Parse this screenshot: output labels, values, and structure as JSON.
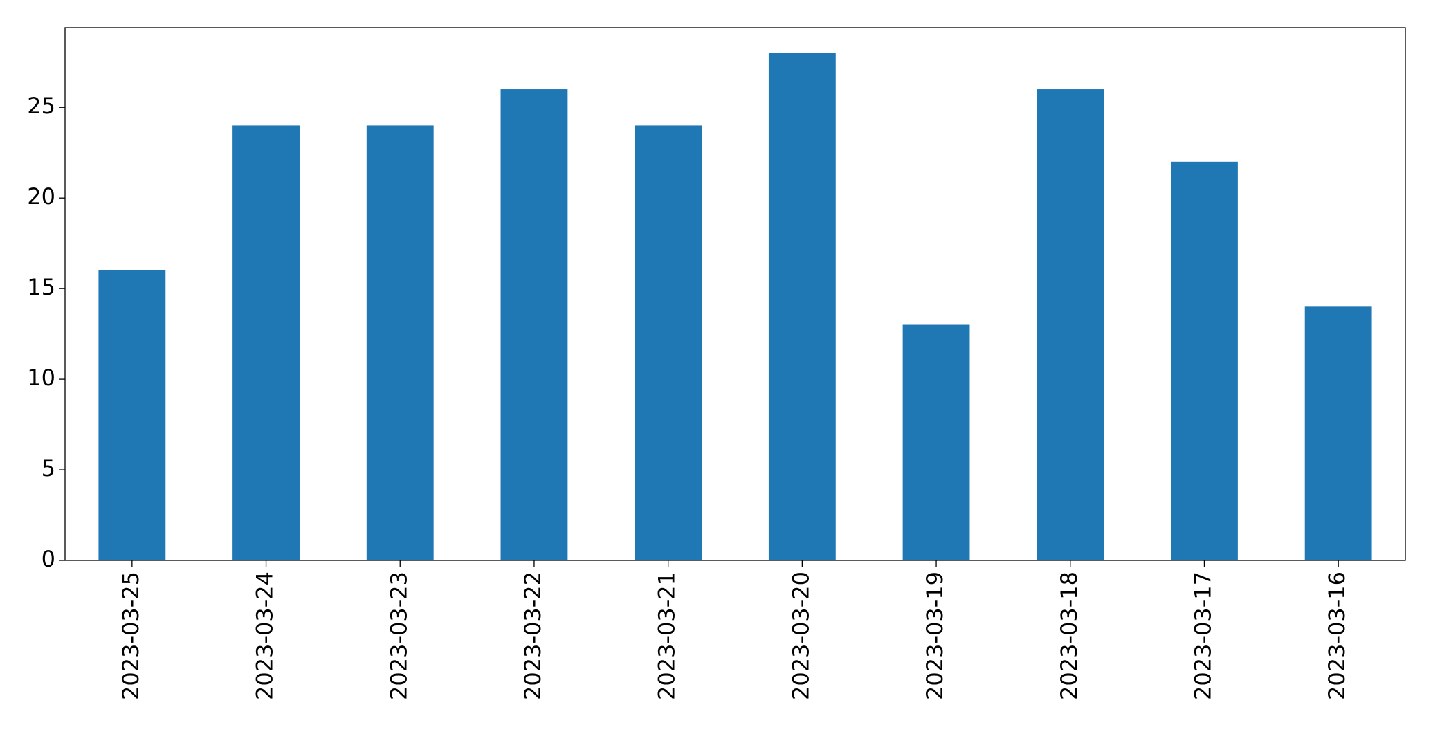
{
  "chart_data": {
    "type": "bar",
    "categories": [
      "2023-03-25",
      "2023-03-24",
      "2023-03-23",
      "2023-03-22",
      "2023-03-21",
      "2023-03-20",
      "2023-03-19",
      "2023-03-18",
      "2023-03-17",
      "2023-03-16"
    ],
    "values": [
      16,
      24,
      24,
      26,
      24,
      28,
      13,
      26,
      22,
      14
    ],
    "color": "#1f77b4",
    "ylim": [
      0,
      29.4
    ],
    "yticks": [
      0,
      5,
      10,
      15,
      20,
      25
    ],
    "grid": false
  }
}
